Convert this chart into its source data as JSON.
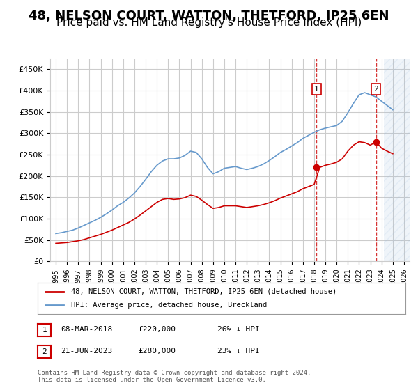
{
  "title": "48, NELSON COURT, WATTON, THETFORD, IP25 6EN",
  "subtitle": "Price paid vs. HM Land Registry's House Price Index (HPI)",
  "title_fontsize": 13,
  "subtitle_fontsize": 11,
  "xlabel": "",
  "ylabel": "",
  "ylim": [
    0,
    475000
  ],
  "yticks": [
    0,
    50000,
    100000,
    150000,
    200000,
    250000,
    300000,
    350000,
    400000,
    450000
  ],
  "ytick_labels": [
    "£0",
    "£50K",
    "£100K",
    "£150K",
    "£200K",
    "£250K",
    "£300K",
    "£350K",
    "£400K",
    "£450K"
  ],
  "x_years": [
    1995,
    1996,
    1997,
    1998,
    1999,
    2000,
    2001,
    2002,
    2003,
    2004,
    2005,
    2006,
    2007,
    2008,
    2009,
    2010,
    2011,
    2012,
    2013,
    2014,
    2015,
    2016,
    2017,
    2018,
    2019,
    2020,
    2021,
    2022,
    2023,
    2024,
    2025,
    2026
  ],
  "hpi_line_color": "#6699cc",
  "price_line_color": "#cc0000",
  "marker_color": "#cc0000",
  "grid_color": "#cccccc",
  "background_color": "#ffffff",
  "hatch_color": "#ddeeff",
  "legend_label_red": "48, NELSON COURT, WATTON, THETFORD, IP25 6EN (detached house)",
  "legend_label_blue": "HPI: Average price, detached house, Breckland",
  "annotation1_label": "1",
  "annotation1_date": "08-MAR-2018",
  "annotation1_price": "£220,000",
  "annotation1_hpi": "26% ↓ HPI",
  "annotation2_label": "2",
  "annotation2_date": "21-JUN-2023",
  "annotation2_price": "£280,000",
  "annotation2_hpi": "23% ↓ HPI",
  "footer": "Contains HM Land Registry data © Crown copyright and database right 2024.\nThis data is licensed under the Open Government Licence v3.0.",
  "marker1_year": 2018.2,
  "marker1_value": 220000,
  "marker2_year": 2023.5,
  "marker2_value": 280000,
  "vline1_year": 2018.2,
  "vline2_year": 2023.5,
  "hpi_data_x": [
    1995,
    1995.5,
    1996,
    1996.5,
    1997,
    1997.5,
    1998,
    1998.5,
    1999,
    1999.5,
    2000,
    2000.5,
    2001,
    2001.5,
    2002,
    2002.5,
    2003,
    2003.5,
    2004,
    2004.5,
    2005,
    2005.5,
    2006,
    2006.5,
    2007,
    2007.5,
    2008,
    2008.5,
    2009,
    2009.5,
    2010,
    2010.5,
    2011,
    2011.5,
    2012,
    2012.5,
    2013,
    2013.5,
    2014,
    2014.5,
    2015,
    2015.5,
    2016,
    2016.5,
    2017,
    2017.5,
    2018,
    2018.5,
    2019,
    2019.5,
    2020,
    2020.5,
    2021,
    2021.5,
    2022,
    2022.5,
    2023,
    2023.5,
    2024,
    2024.5,
    2025
  ],
  "hpi_data_y": [
    65000,
    67000,
    70000,
    73000,
    78000,
    84000,
    90000,
    96000,
    103000,
    111000,
    120000,
    130000,
    138000,
    148000,
    160000,
    175000,
    192000,
    210000,
    225000,
    235000,
    240000,
    240000,
    242000,
    248000,
    258000,
    255000,
    240000,
    220000,
    205000,
    210000,
    218000,
    220000,
    222000,
    218000,
    215000,
    218000,
    222000,
    228000,
    236000,
    245000,
    255000,
    262000,
    270000,
    278000,
    288000,
    295000,
    302000,
    308000,
    312000,
    315000,
    318000,
    328000,
    348000,
    370000,
    390000,
    395000,
    390000,
    385000,
    375000,
    365000,
    355000
  ],
  "price_data_x": [
    1995,
    1995.5,
    1996,
    1996.5,
    1997,
    1997.5,
    1998,
    1998.5,
    1999,
    1999.5,
    2000,
    2000.5,
    2001,
    2001.5,
    2002,
    2002.5,
    2003,
    2003.5,
    2004,
    2004.5,
    2005,
    2005.5,
    2006,
    2006.5,
    2007,
    2007.5,
    2008,
    2008.5,
    2009,
    2009.5,
    2010,
    2010.5,
    2011,
    2011.5,
    2012,
    2012.5,
    2013,
    2013.5,
    2014,
    2014.5,
    2015,
    2015.5,
    2016,
    2016.5,
    2017,
    2017.5,
    2018,
    2018.5,
    2019,
    2019.5,
    2020,
    2020.5,
    2021,
    2021.5,
    2022,
    2022.5,
    2023,
    2023.5,
    2024,
    2024.5,
    2025
  ],
  "price_data_y": [
    42000,
    43000,
    44000,
    46000,
    48000,
    51000,
    55000,
    59000,
    63000,
    68000,
    73000,
    79000,
    85000,
    91000,
    99000,
    108000,
    118000,
    128000,
    138000,
    145000,
    147000,
    145000,
    146000,
    149000,
    155000,
    152000,
    143000,
    133000,
    124000,
    126000,
    130000,
    130000,
    130000,
    128000,
    126000,
    128000,
    130000,
    133000,
    137000,
    142000,
    148000,
    153000,
    158000,
    163000,
    170000,
    175000,
    180000,
    220000,
    225000,
    228000,
    232000,
    240000,
    258000,
    272000,
    280000,
    278000,
    272000,
    280000,
    265000,
    258000,
    252000
  ]
}
